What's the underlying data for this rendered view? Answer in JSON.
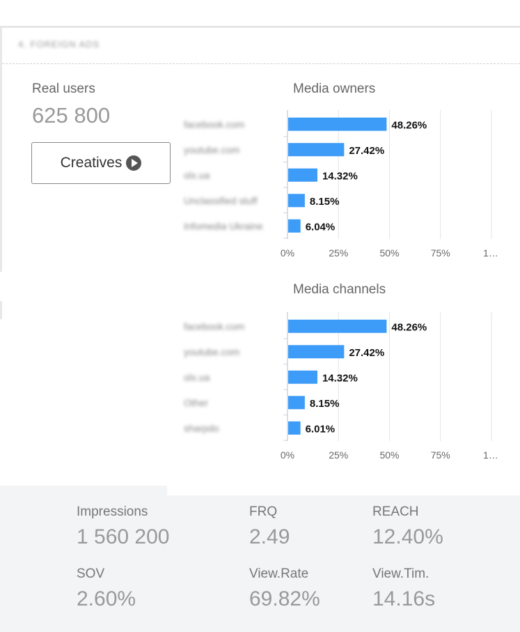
{
  "section": {
    "title": "4. FOREIGN ADS"
  },
  "summary": {
    "real_users_label": "Real users",
    "real_users_value": "625 800",
    "creatives_label": "Creatives"
  },
  "chart_data": [
    {
      "type": "bar",
      "orientation": "horizontal",
      "title": "Media owners",
      "categories": [
        "facebook.com",
        "youtube.com",
        "olx.ua",
        "Unclassified stuff",
        "Infomedia Ukraine"
      ],
      "values": [
        48.26,
        27.42,
        14.32,
        8.15,
        6.04
      ],
      "data_labels": [
        "48.26%",
        "27.42%",
        "14.32%",
        "8.15%",
        "6.04%"
      ],
      "xlim": [
        0,
        100
      ],
      "xticks": [
        "0%",
        "25%",
        "50%",
        "75%",
        "1…"
      ],
      "grid": true,
      "bar_color": "#3d9cf7"
    },
    {
      "type": "bar",
      "orientation": "horizontal",
      "title": "Media channels",
      "categories": [
        "facebook.com",
        "youtube.com",
        "olx.ua",
        "Other",
        "sharpdo"
      ],
      "values": [
        48.26,
        27.42,
        14.32,
        8.15,
        6.01
      ],
      "data_labels": [
        "48.26%",
        "27.42%",
        "14.32%",
        "8.15%",
        "6.01%"
      ],
      "xlim": [
        0,
        100
      ],
      "xticks": [
        "0%",
        "25%",
        "50%",
        "75%",
        "1…"
      ],
      "grid": true,
      "bar_color": "#3d9cf7"
    }
  ],
  "metrics": [
    {
      "label": "Impressions",
      "value": "1 560 200"
    },
    {
      "label": "FRQ",
      "value": "2.49"
    },
    {
      "label": "REACH",
      "value": "12.40%"
    },
    {
      "label": "SOV",
      "value": "2.60%"
    },
    {
      "label": "View.Rate",
      "value": "69.82%"
    },
    {
      "label": "View.Tim.",
      "value": "14.16s"
    }
  ]
}
